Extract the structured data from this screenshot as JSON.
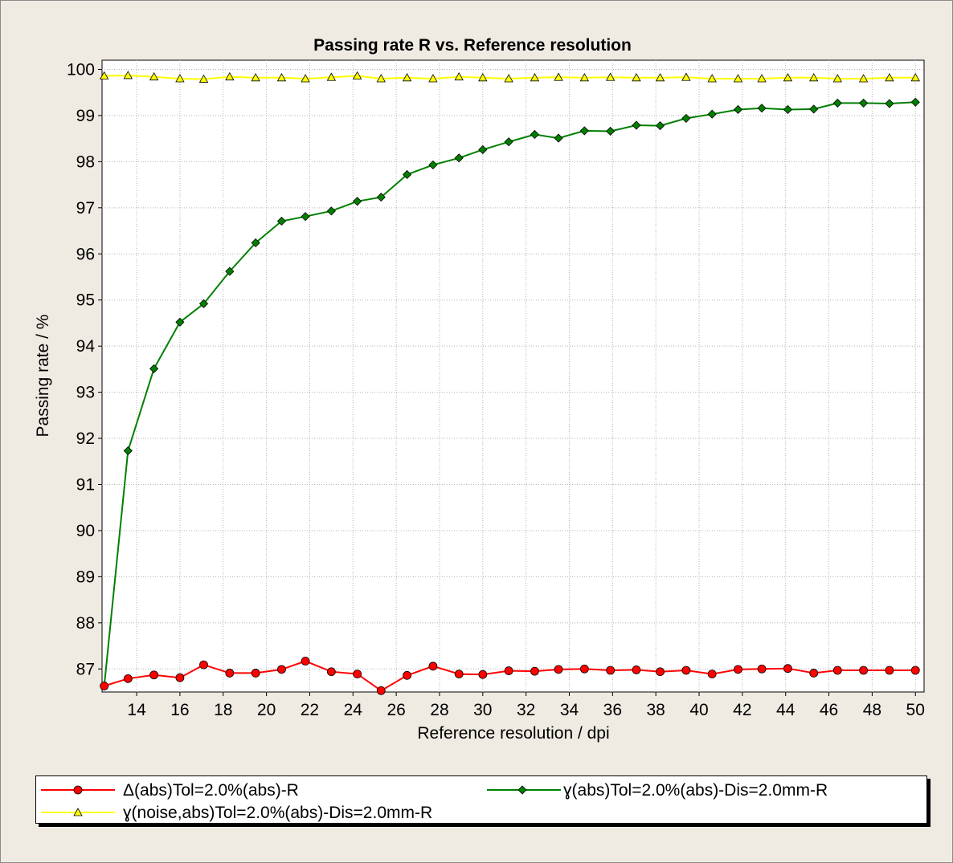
{
  "chart_data": {
    "type": "line",
    "title": "Passing rate R vs. Reference resolution",
    "xlabel": "Reference resolution / dpi",
    "ylabel": "Passing rate / %",
    "xlim": [
      12.4,
      50.4
    ],
    "ylim": [
      86.5,
      100.2
    ],
    "xticks": [
      14,
      16,
      18,
      20,
      22,
      24,
      26,
      28,
      30,
      32,
      34,
      36,
      38,
      40,
      42,
      44,
      46,
      48,
      50
    ],
    "yticks": [
      87,
      88,
      89,
      90,
      91,
      92,
      93,
      94,
      95,
      96,
      97,
      98,
      99,
      100
    ],
    "grid": true,
    "legend_position": "bottom",
    "x": [
      12.5,
      13.6,
      14.8,
      16.0,
      17.1,
      18.3,
      19.5,
      20.7,
      21.8,
      23.0,
      24.2,
      25.3,
      26.5,
      27.7,
      28.9,
      30.0,
      31.2,
      32.4,
      33.5,
      34.7,
      35.9,
      37.1,
      38.2,
      39.4,
      40.6,
      41.8,
      42.9,
      44.1,
      45.3,
      46.4,
      47.6,
      48.8,
      50.0
    ],
    "series": [
      {
        "name": "Δ(abs)Tol=2.0%(abs)-R",
        "color": "#ff0000",
        "marker": "circle",
        "values": [
          86.63,
          86.79,
          86.87,
          86.81,
          87.09,
          86.91,
          86.91,
          86.99,
          87.17,
          86.94,
          86.89,
          86.53,
          86.86,
          87.06,
          86.89,
          86.88,
          86.96,
          86.95,
          86.99,
          87.0,
          86.97,
          86.98,
          86.94,
          86.97,
          86.89,
          86.99,
          87.0,
          87.01,
          86.91,
          86.97,
          86.97,
          86.97,
          86.97
        ]
      },
      {
        "name": "ɣ(abs)Tol=2.0%(abs)-Dis=2.0mm-R",
        "color": "#008000",
        "marker": "diamond",
        "values": [
          86.63,
          91.73,
          93.51,
          94.52,
          94.92,
          95.62,
          96.24,
          96.71,
          96.81,
          96.93,
          97.14,
          97.23,
          97.72,
          97.93,
          98.08,
          98.26,
          98.43,
          98.59,
          98.51,
          98.67,
          98.66,
          98.79,
          98.78,
          98.94,
          99.03,
          99.13,
          99.16,
          99.13,
          99.14,
          99.27,
          99.27,
          99.26,
          99.29
        ]
      },
      {
        "name": "ɣ(noise,abs)Tol=2.0%(abs)-Dis=2.0mm-R",
        "color": "#ffff00",
        "marker": "triangle",
        "values": [
          99.86,
          99.87,
          99.84,
          99.8,
          99.79,
          99.84,
          99.82,
          99.82,
          99.8,
          99.83,
          99.86,
          99.8,
          99.82,
          99.8,
          99.84,
          99.82,
          99.8,
          99.82,
          99.83,
          99.82,
          99.83,
          99.82,
          99.82,
          99.83,
          99.8,
          99.8,
          99.8,
          99.82,
          99.82,
          99.8,
          99.8,
          99.82,
          99.82
        ]
      }
    ]
  }
}
